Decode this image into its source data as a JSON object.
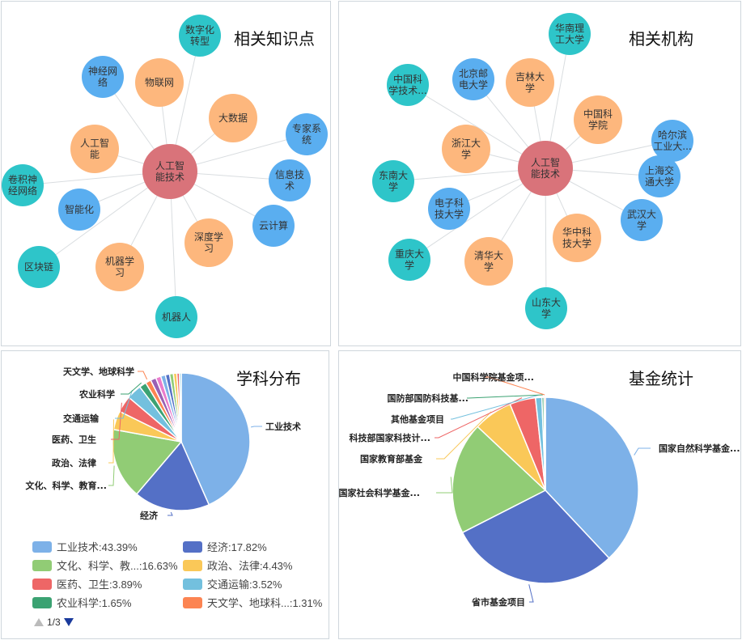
{
  "panels": {
    "knowledge": {
      "title": "相关知识点"
    },
    "institutions": {
      "title": "相关机构"
    },
    "subjects": {
      "title": "学科分布"
    },
    "funds": {
      "title": "基金统计"
    }
  },
  "colors": {
    "center": "#d9737a",
    "orange": "#fdb77d",
    "blue": "#5aaef0",
    "teal": "#2ec5c9",
    "edge": "#d9dde0"
  },
  "chart_data": [
    {
      "type": "network",
      "title": "相关知识点",
      "center": {
        "label": [
          "人工智",
          "能技术"
        ]
      },
      "nodes": [
        {
          "label": [
            "数字化",
            "转型"
          ],
          "group": "teal"
        },
        {
          "label": [
            "物联网"
          ],
          "group": "orange"
        },
        {
          "label": [
            "神经网",
            "络"
          ],
          "group": "blue"
        },
        {
          "label": [
            "大数据"
          ],
          "group": "orange"
        },
        {
          "label": [
            "专家系",
            "统"
          ],
          "group": "blue"
        },
        {
          "label": [
            "人工智",
            "能"
          ],
          "group": "orange"
        },
        {
          "label": [
            "信息技",
            "术"
          ],
          "group": "blue"
        },
        {
          "label": [
            "卷积神",
            "经网络"
          ],
          "group": "teal"
        },
        {
          "label": [
            "智能化"
          ],
          "group": "blue"
        },
        {
          "label": [
            "云计算"
          ],
          "group": "blue"
        },
        {
          "label": [
            "深度学",
            "习"
          ],
          "group": "orange"
        },
        {
          "label": [
            "区块链"
          ],
          "group": "teal"
        },
        {
          "label": [
            "机器学",
            "习"
          ],
          "group": "orange"
        },
        {
          "label": [
            "机器人"
          ],
          "group": "teal"
        }
      ]
    },
    {
      "type": "network",
      "title": "相关机构",
      "center": {
        "label": [
          "人工智",
          "能技术"
        ]
      },
      "nodes": [
        {
          "label": [
            "华南理",
            "工大学"
          ],
          "group": "teal"
        },
        {
          "label": [
            "中国科",
            "学技术..."
          ],
          "group": "teal"
        },
        {
          "label": [
            "北京邮",
            "电大学"
          ],
          "group": "blue"
        },
        {
          "label": [
            "吉林大",
            "学"
          ],
          "group": "orange"
        },
        {
          "label": [
            "中国科",
            "学院"
          ],
          "group": "orange"
        },
        {
          "label": [
            "哈尔滨",
            "工业大..."
          ],
          "group": "blue"
        },
        {
          "label": [
            "浙江大",
            "学"
          ],
          "group": "orange"
        },
        {
          "label": [
            "东南大",
            "学"
          ],
          "group": "teal"
        },
        {
          "label": [
            "上海交",
            "通大学"
          ],
          "group": "blue"
        },
        {
          "label": [
            "电子科",
            "技大学"
          ],
          "group": "blue"
        },
        {
          "label": [
            "武汉大",
            "学"
          ],
          "group": "blue"
        },
        {
          "label": [
            "华中科",
            "技大学"
          ],
          "group": "orange"
        },
        {
          "label": [
            "重庆大",
            "学"
          ],
          "group": "teal"
        },
        {
          "label": [
            "清华大",
            "学"
          ],
          "group": "orange"
        },
        {
          "label": [
            "山东大",
            "学"
          ],
          "group": "teal"
        }
      ]
    },
    {
      "type": "pie",
      "title": "学科分布",
      "slices": [
        {
          "name": "工业技术",
          "label": "工业技术",
          "legend": "工业技术:43.39%",
          "value": 43.39,
          "color": "#7db1e8"
        },
        {
          "name": "经济",
          "label": "经济",
          "legend": "经济:17.82%",
          "value": 17.82,
          "color": "#5470c6"
        },
        {
          "name": "文化、科学、教育...",
          "label": "文化、科学、教育...",
          "legend": "文化、科学、教...:16.63%",
          "value": 16.63,
          "color": "#91cc75"
        },
        {
          "name": "政治、法律",
          "label": "政治、法律",
          "legend": "政治、法律:4.43%",
          "value": 4.43,
          "color": "#fac858"
        },
        {
          "name": "医药、卫生",
          "label": "医药、卫生",
          "legend": "医药、卫生:3.89%",
          "value": 3.89,
          "color": "#ee6666"
        },
        {
          "name": "交通运输",
          "label": "交通运输",
          "legend": "交通运输:3.52%",
          "value": 3.52,
          "color": "#73c0de"
        },
        {
          "name": "农业科学",
          "label": "农业科学",
          "legend": "农业科学:1.65%",
          "value": 1.65,
          "color": "#3ba272"
        },
        {
          "name": "天文学、地球科学",
          "label": "天文学、地球科学",
          "legend": "天文学、地球科...:1.31%",
          "value": 1.31,
          "color": "#fc8452"
        },
        {
          "name": "",
          "label": "",
          "value": 1.3,
          "color": "#9a60b4"
        },
        {
          "name": "",
          "label": "",
          "value": 1.2,
          "color": "#ea7ccc"
        },
        {
          "name": "",
          "label": "",
          "value": 1.1,
          "color": "#7db1e8"
        },
        {
          "name": "",
          "label": "",
          "value": 1.0,
          "color": "#5470c6"
        },
        {
          "name": "",
          "label": "",
          "value": 0.9,
          "color": "#91cc75"
        },
        {
          "name": "",
          "label": "",
          "value": 0.8,
          "color": "#fac858"
        },
        {
          "name": "",
          "label": "",
          "value": 0.6,
          "color": "#ee6666"
        },
        {
          "name": "",
          "label": "",
          "value": 0.43,
          "color": "#73c0de"
        }
      ],
      "pager": "1/3"
    },
    {
      "type": "pie",
      "title": "基金统计",
      "slices": [
        {
          "name": "国家自然科学基金...",
          "label": "国家自然科学基金...",
          "value": 38.0,
          "color": "#7db1e8"
        },
        {
          "name": "省市基金项目",
          "label": "省市基金项目",
          "value": 29.5,
          "color": "#5470c6"
        },
        {
          "name": "国家社会科学基金...",
          "label": "国家社会科学基金...",
          "value": 19.5,
          "color": "#91cc75"
        },
        {
          "name": "国家教育部基金",
          "label": "国家教育部基金",
          "value": 6.8,
          "color": "#fac858"
        },
        {
          "name": "科技部国家科技计...",
          "label": "科技部国家科技计...",
          "value": 4.5,
          "color": "#ee6666"
        },
        {
          "name": "其他基金项目",
          "label": "其他基金项目",
          "value": 1.1,
          "color": "#73c0de"
        },
        {
          "name": "国防部国防科技基...",
          "label": "国防部国防科技基...",
          "value": 0.35,
          "color": "#3ba272"
        },
        {
          "name": "中国科学院基金项...",
          "label": "中国科学院基金项...",
          "value": 0.25,
          "color": "#fc8452"
        }
      ]
    }
  ]
}
